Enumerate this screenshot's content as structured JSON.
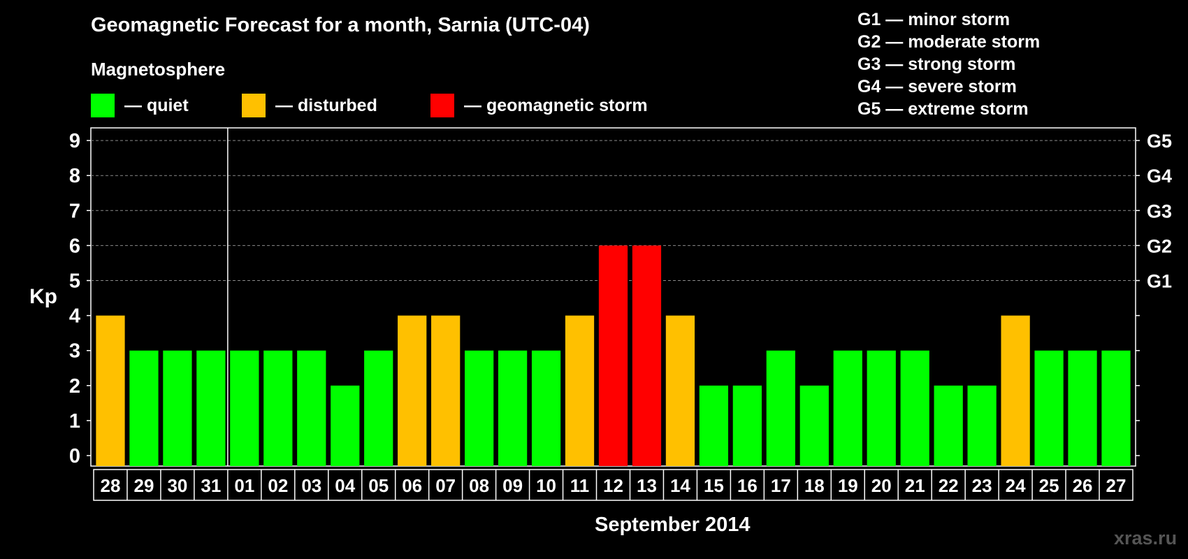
{
  "title": "Geomagnetic Forecast for a month, Sarnia (UTC-04)",
  "legend": {
    "heading": "Magnetosphere",
    "items": [
      {
        "label": "— quiet",
        "color": "#00ff00"
      },
      {
        "label": "— disturbed",
        "color": "#ffc000"
      },
      {
        "label": "— geomagnetic storm",
        "color": "#ff0000"
      }
    ]
  },
  "storm_levels": [
    "G1 — minor storm",
    "G2 — moderate storm",
    "G3 — strong storm",
    "G4 — severe storm",
    "G5 — extreme storm"
  ],
  "watermark": "xras.ru",
  "chart_data": {
    "type": "bar",
    "ylabel": "Kp",
    "xlabel": "September 2014",
    "ylim": [
      0,
      9
    ],
    "yticks": [
      0,
      1,
      2,
      3,
      4,
      5,
      6,
      7,
      8,
      9
    ],
    "right_axis_labels": [
      {
        "y": 5,
        "label": "G1"
      },
      {
        "y": 6,
        "label": "G2"
      },
      {
        "y": 7,
        "label": "G3"
      },
      {
        "y": 8,
        "label": "G4"
      },
      {
        "y": 9,
        "label": "G5"
      }
    ],
    "grid": "dashed horizontal at Kp 5-9",
    "categories": [
      "28",
      "29",
      "30",
      "31",
      "01",
      "02",
      "03",
      "04",
      "05",
      "06",
      "07",
      "08",
      "09",
      "10",
      "11",
      "12",
      "13",
      "14",
      "15",
      "16",
      "17",
      "18",
      "19",
      "20",
      "21",
      "22",
      "23",
      "24",
      "25",
      "26",
      "27"
    ],
    "values": [
      4,
      3,
      3,
      3,
      3,
      3,
      3,
      2,
      3,
      4,
      4,
      3,
      3,
      3,
      4,
      6,
      6,
      4,
      2,
      2,
      3,
      2,
      3,
      3,
      3,
      2,
      2,
      4,
      3,
      3,
      3
    ],
    "month_boundary_after": "31",
    "colors": {
      "quiet": "#00ff00",
      "disturbed": "#ffc000",
      "storm": "#ff0000"
    }
  }
}
